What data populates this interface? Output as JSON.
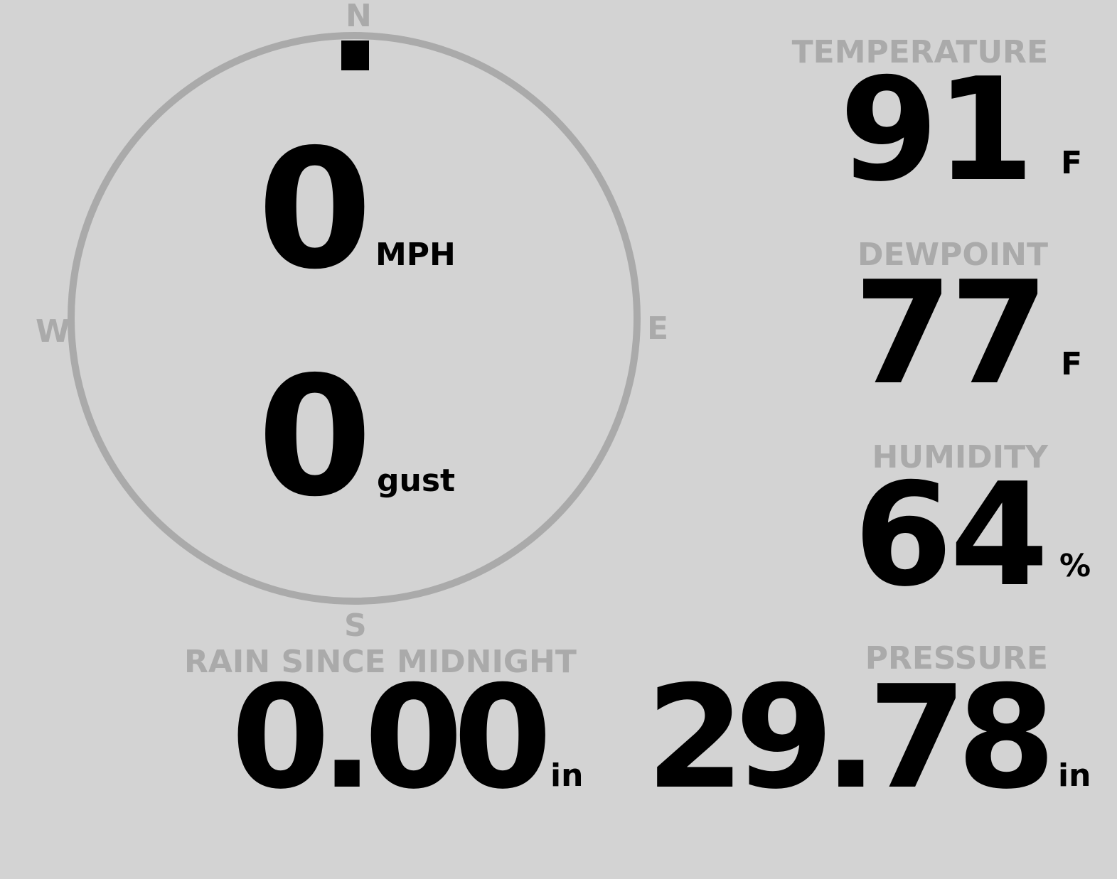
{
  "wind": {
    "speed": "0",
    "speed_unit": "MPH",
    "gust": "0",
    "gust_unit": "gust",
    "direction_degrees": 0,
    "compass": {
      "n": "N",
      "e": "E",
      "s": "S",
      "w": "W"
    },
    "colors": {
      "ring": "#aaaaaa",
      "needle": "#000000"
    }
  },
  "temperature": {
    "label": "TEMPERATURE",
    "value": "91",
    "unit": "F"
  },
  "dewpoint": {
    "label": "DEWPOINT",
    "value": "77",
    "unit": "F"
  },
  "humidity": {
    "label": "HUMIDITY",
    "value": "64",
    "unit": "%"
  },
  "pressure": {
    "label": "PRESSURE",
    "value": "29.78",
    "unit": "in"
  },
  "rain": {
    "label": "RAIN SINCE MIDNIGHT",
    "value": "0.00",
    "unit": "in"
  },
  "colors": {
    "background": "#d3d3d3",
    "label": "#aaaaaa",
    "value": "#000000"
  }
}
